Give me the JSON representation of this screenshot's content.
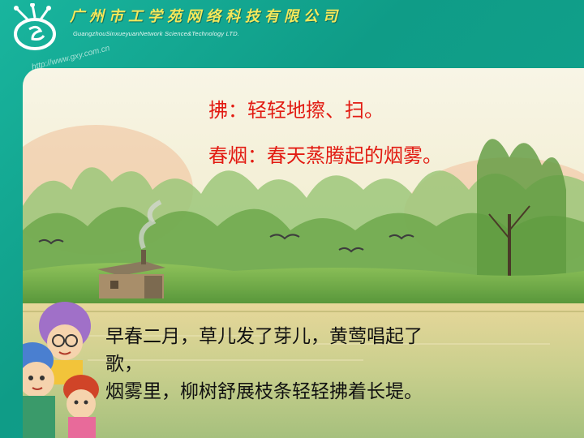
{
  "header": {
    "company_cn": "广州市工学苑网络科技有限公司",
    "company_en": "GuangzhouSinxueyuanNetwork Science&Technology LTD.",
    "website": "http://www.gxy.com.cn"
  },
  "definitions": {
    "line1": "拂：轻轻地擦、扫。",
    "line2": "春烟：春天蒸腾起的烟雾。"
  },
  "poem": {
    "line1": "早春二月，草儿发了芽儿，黄莺唱起了",
    "line2": "歌，",
    "line3": "烟雾里，柳树舒展枝条轻轻拂着长堤。"
  },
  "colors": {
    "frame": "#12a58e",
    "definition_text": "#e21b12",
    "poem_text": "#111111",
    "company_text": "#f6e85a"
  }
}
